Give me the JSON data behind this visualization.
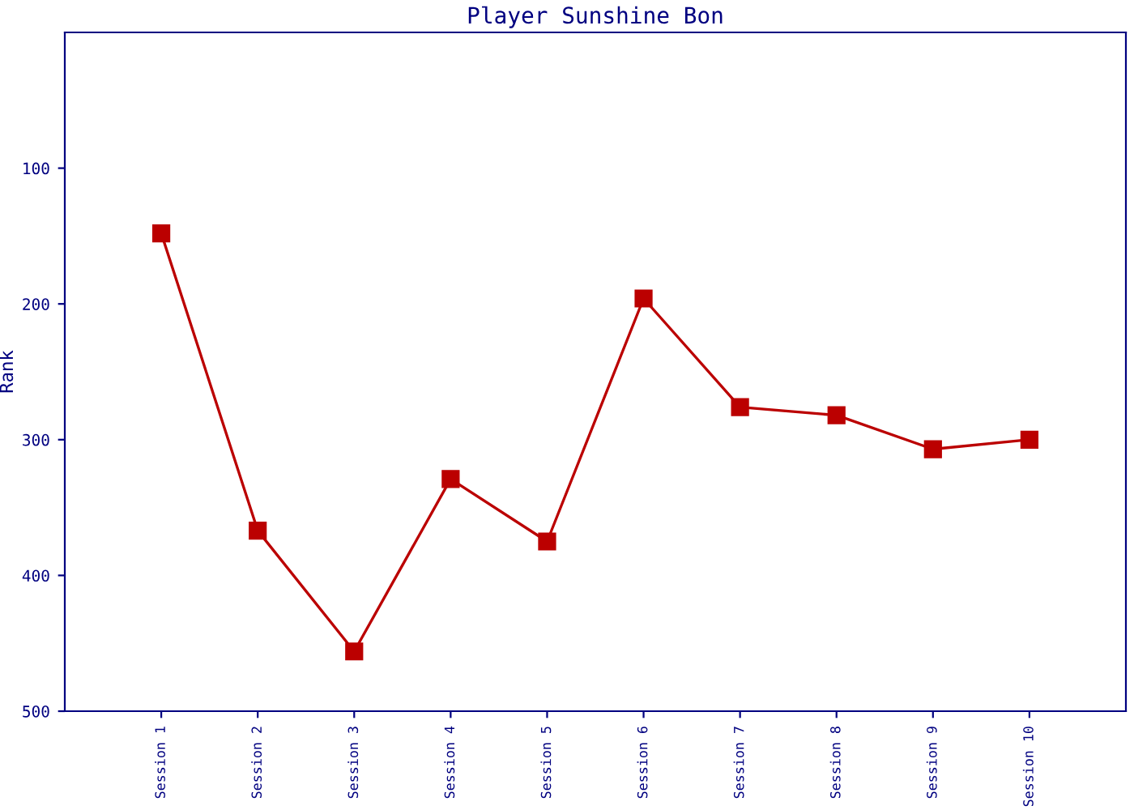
{
  "chart_data": {
    "type": "line",
    "title": "Player Sunshine Bon",
    "ylabel": "Rank",
    "categories": [
      "Session 1",
      "Session 2",
      "Session 3",
      "Session 4",
      "Session 5",
      "Session 6",
      "Session 7",
      "Session 8",
      "Session 9",
      "Session 10"
    ],
    "series": [
      {
        "color": "#bb0000",
        "values": [
          148,
          367,
          456,
          329,
          375,
          196,
          276,
          282,
          307,
          300
        ]
      }
    ],
    "ylim": [
      500,
      0
    ],
    "yticks": [
      100,
      200,
      300,
      400,
      500
    ],
    "marker": "square",
    "line_style": "solid",
    "grid": false,
    "legend": false
  }
}
